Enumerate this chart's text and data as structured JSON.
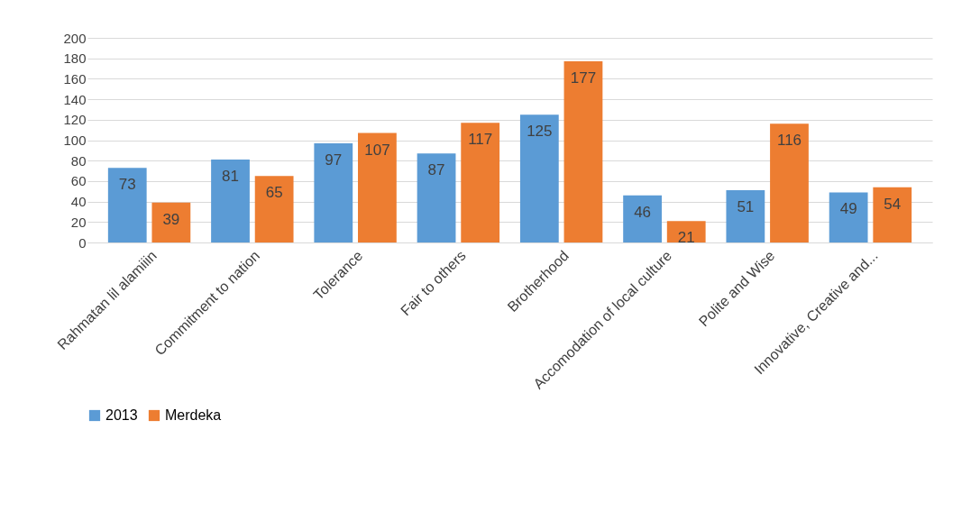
{
  "chart_data": {
    "type": "bar",
    "categories": [
      "Rahmatan lil alamiiin",
      "Commitment to nation",
      "Tolerance",
      "Fair to others",
      "Brotherhood",
      "Accomodation of local culture",
      "Polite and Wise",
      "Innovative, Creative and..."
    ],
    "series": [
      {
        "name": "2013",
        "color": "#5b9bd5",
        "values": [
          73,
          81,
          97,
          87,
          125,
          46,
          51,
          49
        ],
        "value_labels": [
          "73",
          "81",
          "97",
          "87",
          "125",
          "46",
          "51",
          "49"
        ]
      },
      {
        "name": "Merdeka",
        "color": "#ed7d31",
        "values": [
          39,
          65,
          107,
          117,
          177,
          21,
          116,
          54
        ],
        "value_labels": [
          "39",
          "65",
          "107",
          "117",
          "177",
          "21",
          "116",
          "54"
        ]
      }
    ],
    "ylim": [
      0,
      200
    ],
    "yticks": [
      0,
      20,
      40,
      60,
      80,
      100,
      120,
      140,
      160,
      180,
      200
    ],
    "grid": "y",
    "legend": "bottom"
  }
}
